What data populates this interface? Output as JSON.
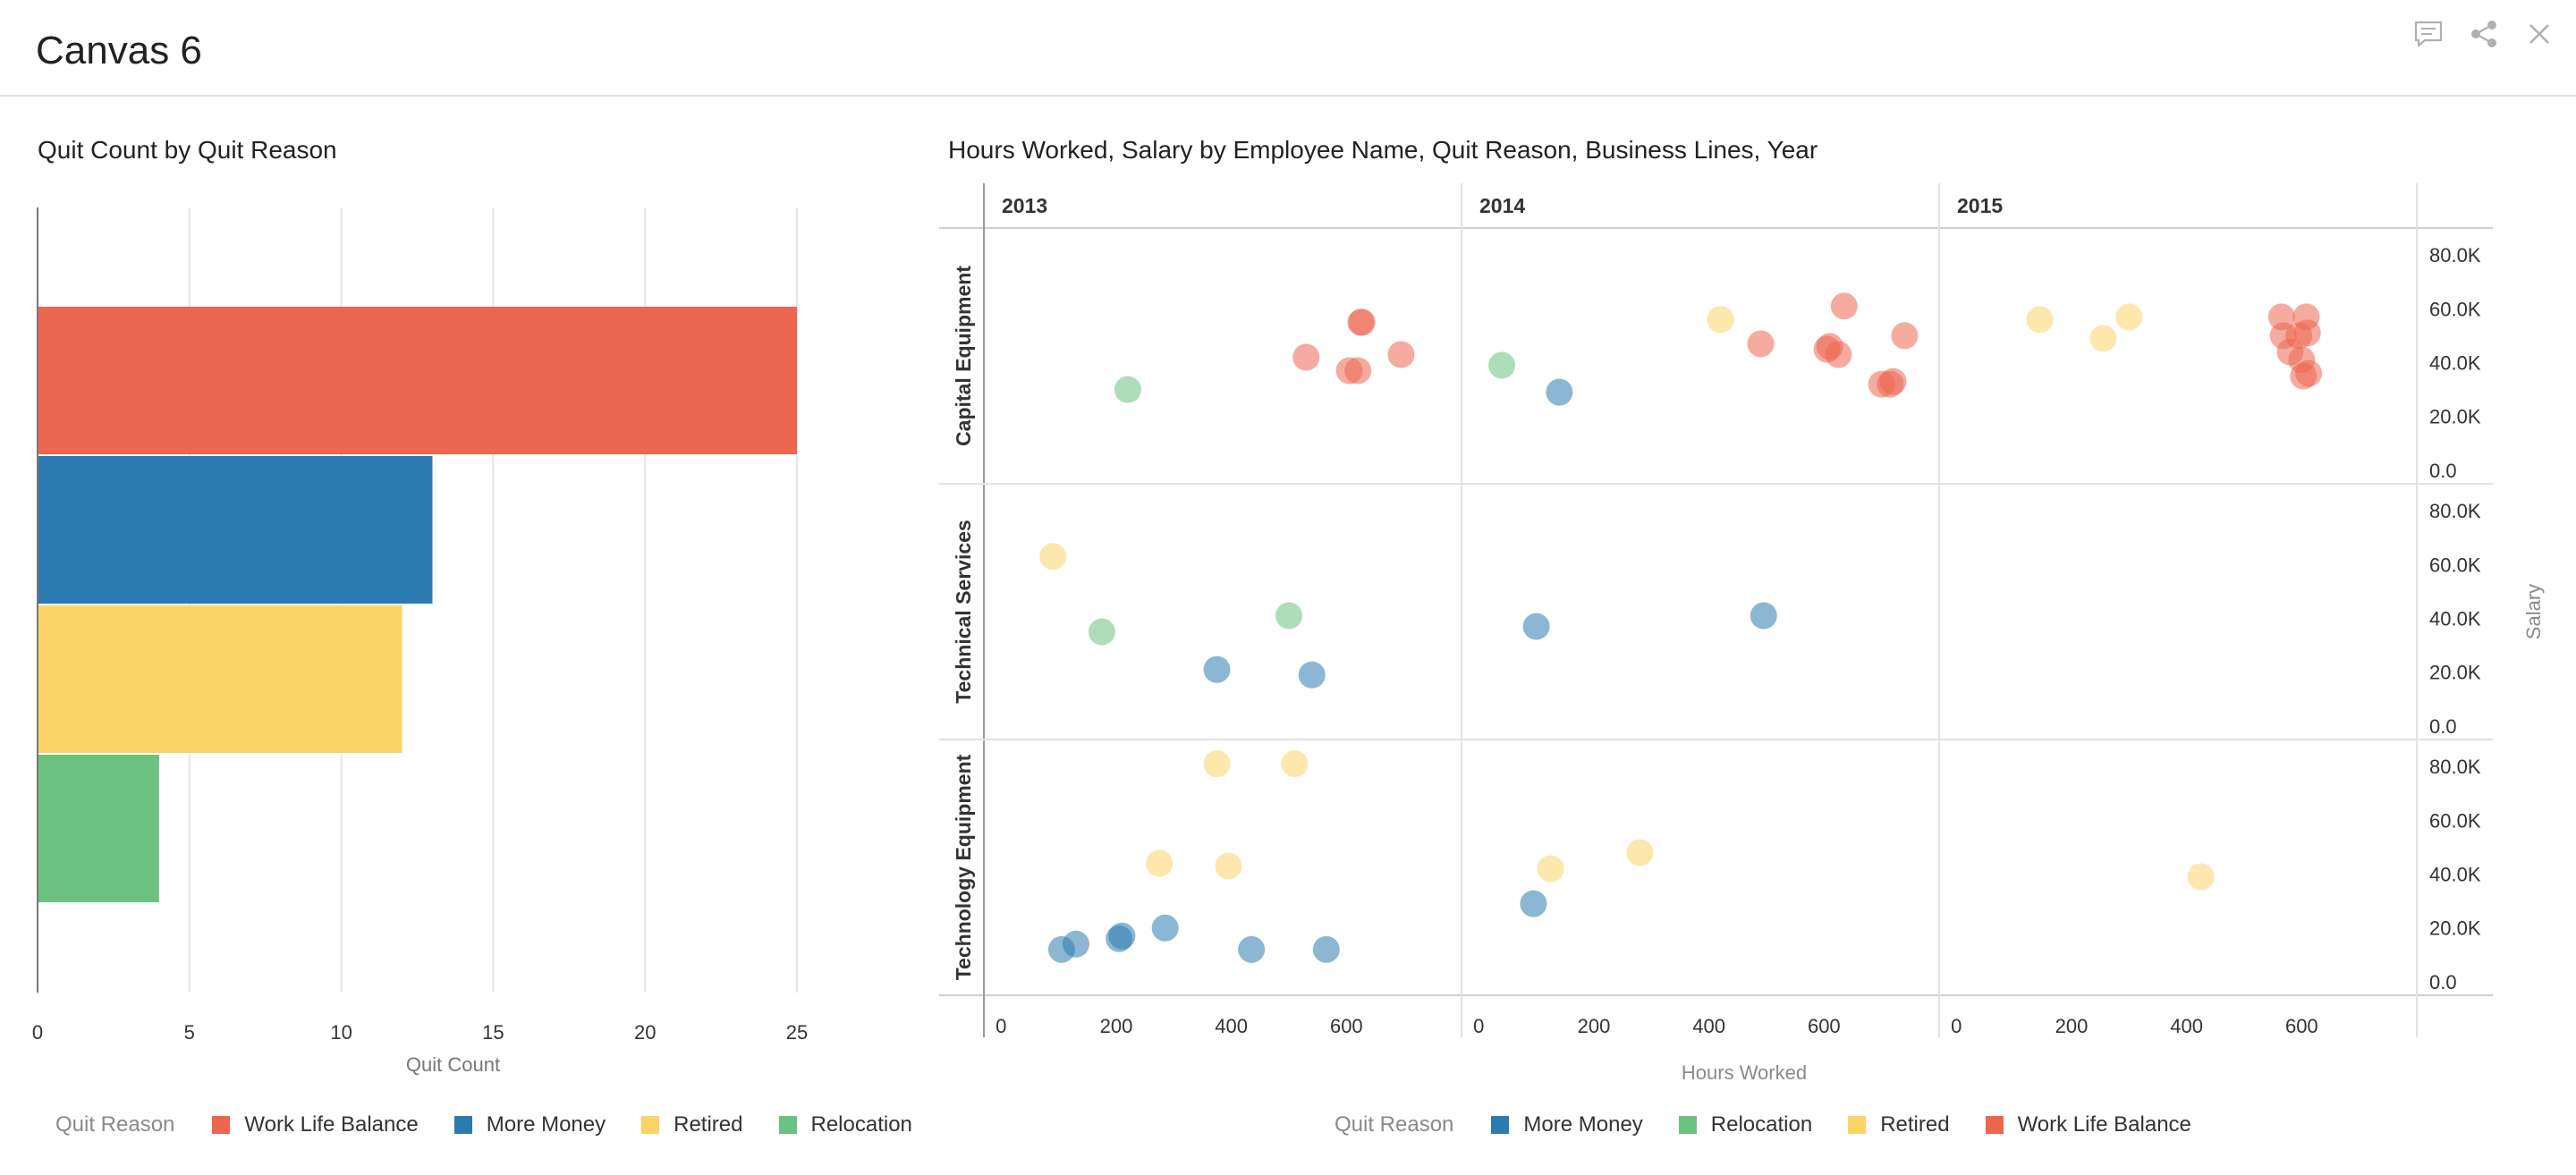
{
  "canvas": {
    "title": "Canvas 6",
    "icons": [
      "comment-icon",
      "share-icon",
      "close-icon"
    ]
  },
  "colors": {
    "Work Life Balance": "#ec6650",
    "More Money": "#2b7bb0",
    "Retired": "#fbd467",
    "Relocation": "#6bc180"
  },
  "chart_data": [
    {
      "type": "bar",
      "orientation": "horizontal",
      "title": "Quit Count by Quit Reason",
      "categories": [
        "Work Life Balance",
        "More Money",
        "Retired",
        "Relocation"
      ],
      "values": [
        25,
        13,
        12,
        4
      ],
      "xlabel": "Quit Count",
      "xlim": [
        0,
        25
      ],
      "xticks": [
        "0",
        "5",
        "10",
        "15",
        "20",
        "25"
      ],
      "grid": true,
      "legend": {
        "title": "Quit Reason",
        "position": "bottom",
        "items": [
          "Work Life Balance",
          "More Money",
          "Retired",
          "Relocation"
        ]
      }
    },
    {
      "type": "scatter",
      "title": "Hours Worked, Salary by Employee Name, Quit Reason, Business Lines, Year",
      "columns": [
        "2013",
        "2014",
        "2015"
      ],
      "rows": [
        "Capital Equipment",
        "Technical Services",
        "Technology Equipment"
      ],
      "xlabel": "Hours Worked",
      "ylabel": "Salary",
      "xlim": [
        -30,
        800
      ],
      "ylim": [
        -5000,
        90000
      ],
      "xticks": [
        0,
        200,
        400,
        600
      ],
      "xtick_labels": [
        "0",
        "200",
        "400",
        "600"
      ],
      "yticks": [
        0,
        20000,
        40000,
        60000,
        80000
      ],
      "ytick_labels": [
        "0.0",
        "20.0K",
        "40.0K",
        "60.0K",
        "80.0K"
      ],
      "legend": {
        "title": "Quit Reason",
        "position": "bottom",
        "items": [
          "More Money",
          "Relocation",
          "Retired",
          "Work Life Balance"
        ]
      },
      "points": [
        {
          "row": "Capital Equipment",
          "year": "2013",
          "reason": "Relocation",
          "hours": 220,
          "salary": 30000
        },
        {
          "row": "Capital Equipment",
          "year": "2013",
          "reason": "Work Life Balance",
          "hours": 530,
          "salary": 42000
        },
        {
          "row": "Capital Equipment",
          "year": "2013",
          "reason": "Work Life Balance",
          "hours": 605,
          "salary": 37000
        },
        {
          "row": "Capital Equipment",
          "year": "2013",
          "reason": "Work Life Balance",
          "hours": 620,
          "salary": 37000
        },
        {
          "row": "Capital Equipment",
          "year": "2013",
          "reason": "Work Life Balance",
          "hours": 625,
          "salary": 55000
        },
        {
          "row": "Capital Equipment",
          "year": "2013",
          "reason": "Work Life Balance",
          "hours": 627,
          "salary": 55000
        },
        {
          "row": "Capital Equipment",
          "year": "2013",
          "reason": "Work Life Balance",
          "hours": 695,
          "salary": 43000
        },
        {
          "row": "Capital Equipment",
          "year": "2014",
          "reason": "Relocation",
          "hours": 40,
          "salary": 39000
        },
        {
          "row": "Capital Equipment",
          "year": "2014",
          "reason": "More Money",
          "hours": 140,
          "salary": 29000
        },
        {
          "row": "Capital Equipment",
          "year": "2014",
          "reason": "Retired",
          "hours": 420,
          "salary": 56000
        },
        {
          "row": "Capital Equipment",
          "year": "2014",
          "reason": "Work Life Balance",
          "hours": 490,
          "salary": 47000
        },
        {
          "row": "Capital Equipment",
          "year": "2014",
          "reason": "Work Life Balance",
          "hours": 605,
          "salary": 45000
        },
        {
          "row": "Capital Equipment",
          "year": "2014",
          "reason": "Work Life Balance",
          "hours": 610,
          "salary": 46000
        },
        {
          "row": "Capital Equipment",
          "year": "2014",
          "reason": "Work Life Balance",
          "hours": 625,
          "salary": 43000
        },
        {
          "row": "Capital Equipment",
          "year": "2014",
          "reason": "Work Life Balance",
          "hours": 635,
          "salary": 61000
        },
        {
          "row": "Capital Equipment",
          "year": "2014",
          "reason": "Work Life Balance",
          "hours": 700,
          "salary": 32000
        },
        {
          "row": "Capital Equipment",
          "year": "2014",
          "reason": "Work Life Balance",
          "hours": 715,
          "salary": 32000
        },
        {
          "row": "Capital Equipment",
          "year": "2014",
          "reason": "Work Life Balance",
          "hours": 720,
          "salary": 33000
        },
        {
          "row": "Capital Equipment",
          "year": "2014",
          "reason": "Work Life Balance",
          "hours": 740,
          "salary": 50000
        },
        {
          "row": "Capital Equipment",
          "year": "2015",
          "reason": "Retired",
          "hours": 145,
          "salary": 56000
        },
        {
          "row": "Capital Equipment",
          "year": "2015",
          "reason": "Retired",
          "hours": 255,
          "salary": 49000
        },
        {
          "row": "Capital Equipment",
          "year": "2015",
          "reason": "Retired",
          "hours": 300,
          "salary": 57000
        },
        {
          "row": "Capital Equipment",
          "year": "2015",
          "reason": "Work Life Balance",
          "hours": 565,
          "salary": 57000
        },
        {
          "row": "Capital Equipment",
          "year": "2015",
          "reason": "Work Life Balance",
          "hours": 568,
          "salary": 50000
        },
        {
          "row": "Capital Equipment",
          "year": "2015",
          "reason": "Work Life Balance",
          "hours": 580,
          "salary": 44000
        },
        {
          "row": "Capital Equipment",
          "year": "2015",
          "reason": "Work Life Balance",
          "hours": 595,
          "salary": 50000
        },
        {
          "row": "Capital Equipment",
          "year": "2015",
          "reason": "Work Life Balance",
          "hours": 600,
          "salary": 41000
        },
        {
          "row": "Capital Equipment",
          "year": "2015",
          "reason": "Work Life Balance",
          "hours": 603,
          "salary": 35000
        },
        {
          "row": "Capital Equipment",
          "year": "2015",
          "reason": "Work Life Balance",
          "hours": 608,
          "salary": 57000
        },
        {
          "row": "Capital Equipment",
          "year": "2015",
          "reason": "Work Life Balance",
          "hours": 610,
          "salary": 51000
        },
        {
          "row": "Capital Equipment",
          "year": "2015",
          "reason": "Work Life Balance",
          "hours": 612,
          "salary": 36000
        },
        {
          "row": "Technical Services",
          "year": "2013",
          "reason": "Retired",
          "hours": 90,
          "salary": 63000
        },
        {
          "row": "Technical Services",
          "year": "2013",
          "reason": "Relocation",
          "hours": 175,
          "salary": 35000
        },
        {
          "row": "Technical Services",
          "year": "2013",
          "reason": "More Money",
          "hours": 375,
          "salary": 21000
        },
        {
          "row": "Technical Services",
          "year": "2013",
          "reason": "Relocation",
          "hours": 500,
          "salary": 41000
        },
        {
          "row": "Technical Services",
          "year": "2013",
          "reason": "More Money",
          "hours": 540,
          "salary": 19000
        },
        {
          "row": "Technical Services",
          "year": "2014",
          "reason": "More Money",
          "hours": 100,
          "salary": 37000
        },
        {
          "row": "Technical Services",
          "year": "2014",
          "reason": "More Money",
          "hours": 495,
          "salary": 41000
        },
        {
          "row": "Technology Equipment",
          "year": "2013",
          "reason": "Retired",
          "hours": 375,
          "salary": 81000
        },
        {
          "row": "Technology Equipment",
          "year": "2013",
          "reason": "Retired",
          "hours": 510,
          "salary": 81000
        },
        {
          "row": "Technology Equipment",
          "year": "2013",
          "reason": "Retired",
          "hours": 275,
          "salary": 44000
        },
        {
          "row": "Technology Equipment",
          "year": "2013",
          "reason": "Retired",
          "hours": 395,
          "salary": 43000
        },
        {
          "row": "Technology Equipment",
          "year": "2013",
          "reason": "More Money",
          "hours": 105,
          "salary": 12000
        },
        {
          "row": "Technology Equipment",
          "year": "2013",
          "reason": "More Money",
          "hours": 130,
          "salary": 14000
        },
        {
          "row": "Technology Equipment",
          "year": "2013",
          "reason": "More Money",
          "hours": 205,
          "salary": 16000
        },
        {
          "row": "Technology Equipment",
          "year": "2013",
          "reason": "More Money",
          "hours": 210,
          "salary": 17000
        },
        {
          "row": "Technology Equipment",
          "year": "2013",
          "reason": "More Money",
          "hours": 285,
          "salary": 20000
        },
        {
          "row": "Technology Equipment",
          "year": "2013",
          "reason": "More Money",
          "hours": 435,
          "salary": 12000
        },
        {
          "row": "Technology Equipment",
          "year": "2013",
          "reason": "More Money",
          "hours": 565,
          "salary": 12000
        },
        {
          "row": "Technology Equipment",
          "year": "2014",
          "reason": "Retired",
          "hours": 125,
          "salary": 42000
        },
        {
          "row": "Technology Equipment",
          "year": "2014",
          "reason": "Retired",
          "hours": 280,
          "salary": 48000
        },
        {
          "row": "Technology Equipment",
          "year": "2014",
          "reason": "More Money",
          "hours": 95,
          "salary": 29000
        },
        {
          "row": "Technology Equipment",
          "year": "2015",
          "reason": "Retired",
          "hours": 425,
          "salary": 39000
        }
      ]
    }
  ]
}
